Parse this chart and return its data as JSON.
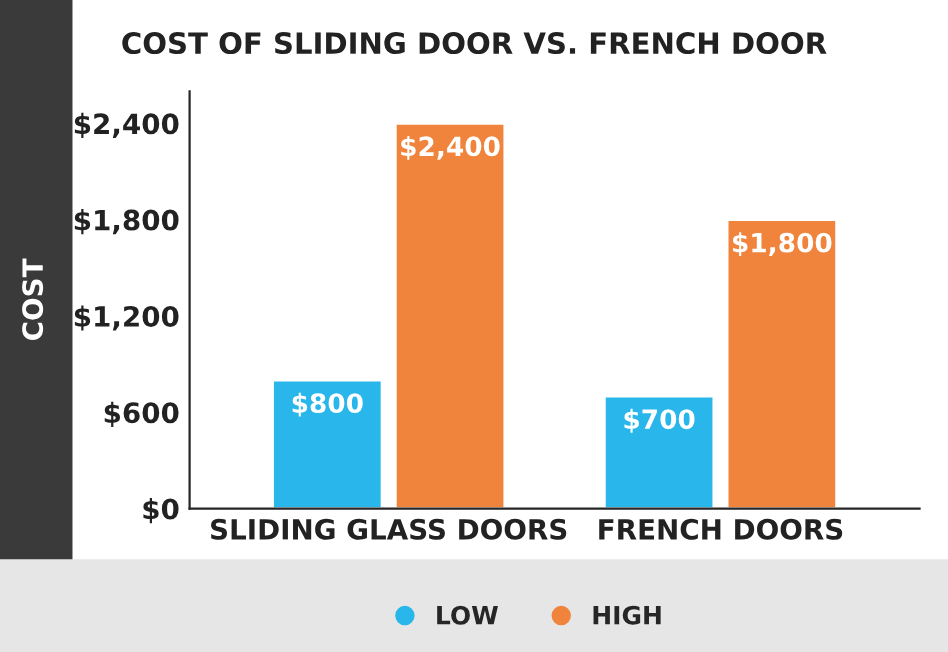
{
  "chart_data": {
    "type": "bar",
    "title": "COST OF SLIDING DOOR VS. FRENCH DOOR",
    "ylabel": "COST",
    "categories": [
      "SLIDING GLASS DOORS",
      "FRENCH DOORS"
    ],
    "series": [
      {
        "name": "LOW",
        "color": "#29b6ea",
        "values": [
          800,
          700
        ],
        "value_labels": [
          "$800",
          "$700"
        ]
      },
      {
        "name": "HIGH",
        "color": "#f0843c",
        "values": [
          2400,
          1800
        ],
        "value_labels": [
          "$2,400",
          "$1,800"
        ]
      }
    ],
    "ylim": [
      0,
      2600
    ],
    "yticks": [
      {
        "value": 0,
        "label": "$0"
      },
      {
        "value": 600,
        "label": "$600"
      },
      {
        "value": 1200,
        "label": "$1,200"
      },
      {
        "value": 1800,
        "label": "$1,800"
      },
      {
        "value": 2400,
        "label": "$2,400"
      }
    ],
    "legend": "bottom",
    "grid": false
  }
}
